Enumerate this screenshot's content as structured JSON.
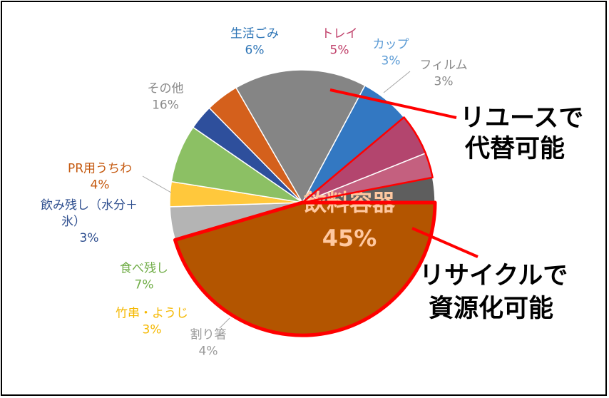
{
  "chart_data": {
    "type": "pie",
    "categories": [
      "飲料容器",
      "割り箸",
      "竹串・ようじ",
      "食べ残し",
      "飲み残し（水分＋氷）",
      "PR用うちわ",
      "その他",
      "生活ごみ",
      "トレイ",
      "カップ",
      "フィルム"
    ],
    "values": [
      45,
      4,
      3,
      7,
      3,
      4,
      16,
      6,
      5,
      3,
      3
    ],
    "value_labels": [
      "45%",
      "4%",
      "3%",
      "7%",
      "3%",
      "4%",
      "16%",
      "6%",
      "5%",
      "3%",
      "3%"
    ],
    "label_lines": [
      [
        "飲料容器"
      ],
      [
        "割り箸"
      ],
      [
        "竹串・ようじ"
      ],
      [
        "食べ残し"
      ],
      [
        "飲み残し（水分＋",
        "氷）"
      ],
      [
        "PR用うちわ"
      ],
      [
        "その他"
      ],
      [
        "生活ごみ"
      ],
      [
        "トレイ"
      ],
      [
        "カップ"
      ],
      [
        "フィルム"
      ]
    ],
    "colors": [
      "#b35500",
      "#b4b4b4",
      "#ffc83c",
      "#8cc064",
      "#2e4f9c",
      "#d4601c",
      "#858585",
      "#3378c2",
      "#b3456e",
      "#c4607f",
      "#5e5e5e"
    ],
    "label_colors": [
      "#ffc8a0",
      "#9a9a9a",
      "#f5b800",
      "#70ad47",
      "#2f4f8f",
      "#c55a11",
      "#8a8a8a",
      "#2e75b6",
      "#c0406a",
      "#5b9bd5",
      "#8a8a8a"
    ],
    "highlight_color": "#ff0000",
    "title": "",
    "legend": "none"
  },
  "annotations": {
    "reuse_lines": [
      "リユースで",
      "代替可能"
    ],
    "recycle_lines": [
      "リサイクルで",
      "資源化可能"
    ]
  }
}
